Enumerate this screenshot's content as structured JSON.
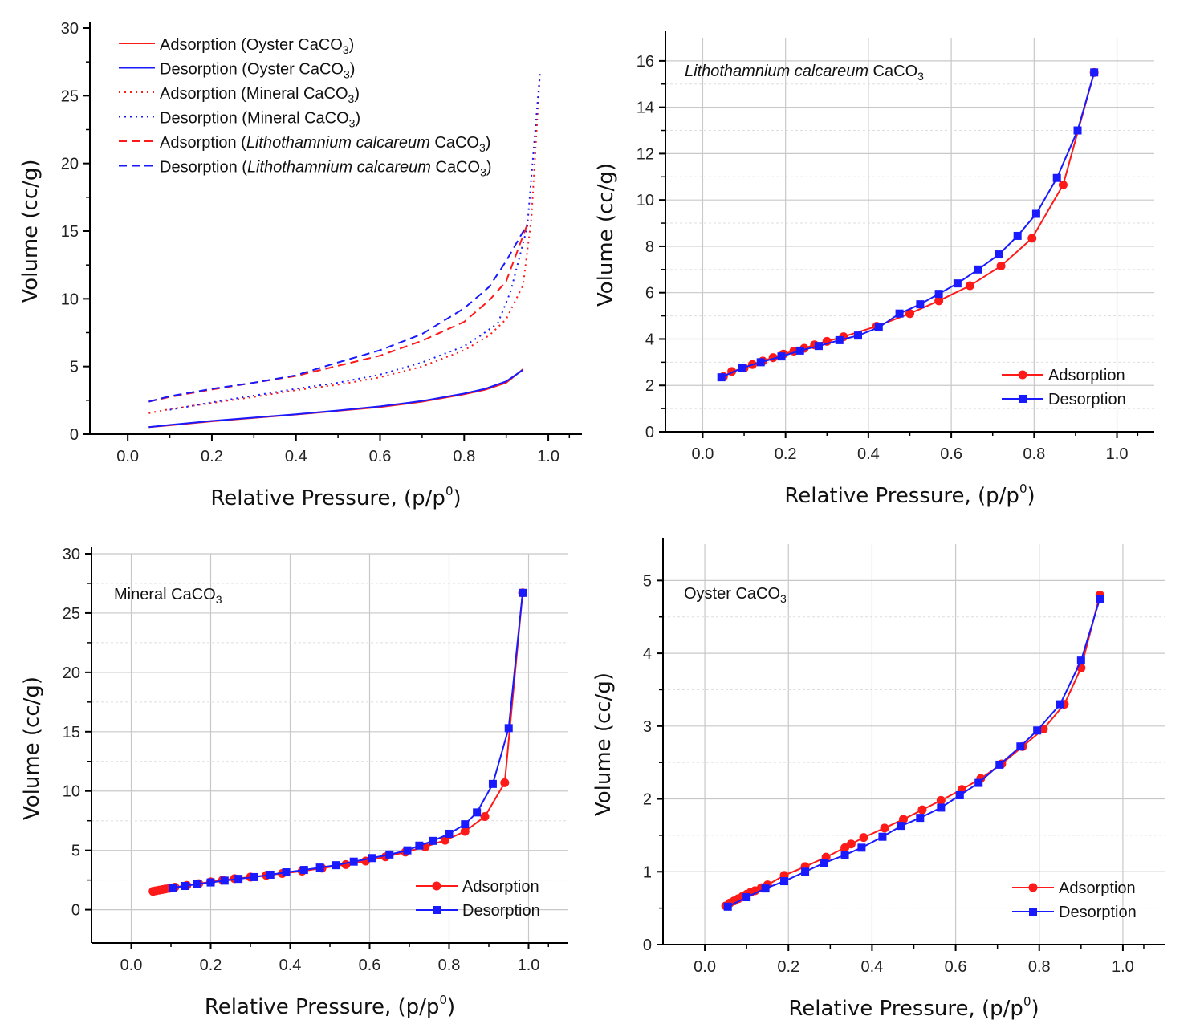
{
  "colors": {
    "adsorption": "#ff1a1a",
    "desorption": "#1a1aff",
    "grid": "#c8c8c8",
    "axis": "#000000"
  },
  "chart_data": [
    {
      "type": "line",
      "id": "overview",
      "title": "",
      "xlabel": "Relative Pressure, (p/p",
      "xlabel_sup": "0",
      "xlabel_end": ")",
      "ylabel": "Volume (cc/g)",
      "xlim": [
        -0.09,
        1.08
      ],
      "ylim": [
        0,
        30
      ],
      "xticks": [
        0.0,
        0.2,
        0.4,
        0.6,
        0.8,
        1.0
      ],
      "xtick_labels": [
        "0.0",
        "0.2",
        "0.4",
        "0.6",
        "0.8",
        "1.0"
      ],
      "yticks": [
        0,
        5,
        10,
        15,
        20,
        25,
        30
      ],
      "ytick_labels": [
        "0",
        "5",
        "10",
        "15",
        "20",
        "25",
        "30"
      ],
      "grid": false,
      "legend_position": "top-left",
      "series": [
        {
          "name": "Adsorption",
          "sample": "Oyster CaCO",
          "sub": "3",
          "style": "solid",
          "color": "adsorption",
          "x": [
            0.05,
            0.1,
            0.2,
            0.3,
            0.4,
            0.5,
            0.6,
            0.7,
            0.8,
            0.85,
            0.9,
            0.94
          ],
          "y": [
            0.52,
            0.65,
            0.95,
            1.2,
            1.45,
            1.73,
            2.0,
            2.4,
            2.95,
            3.28,
            3.8,
            4.8
          ]
        },
        {
          "name": "Desorption",
          "sample": "Oyster CaCO",
          "sub": "3",
          "style": "solid",
          "color": "desorption",
          "x": [
            0.05,
            0.1,
            0.2,
            0.3,
            0.4,
            0.5,
            0.6,
            0.7,
            0.8,
            0.85,
            0.9,
            0.94
          ],
          "y": [
            0.52,
            0.68,
            0.98,
            1.22,
            1.47,
            1.75,
            2.05,
            2.45,
            3.0,
            3.35,
            3.9,
            4.75
          ]
        },
        {
          "name": "Adsorption",
          "sample": "Mineral CaCO",
          "sub": "3",
          "style": "dotted",
          "color": "adsorption",
          "x": [
            0.05,
            0.1,
            0.2,
            0.3,
            0.4,
            0.5,
            0.6,
            0.7,
            0.8,
            0.86,
            0.9,
            0.94,
            0.96,
            0.98
          ],
          "y": [
            1.55,
            1.85,
            2.3,
            2.75,
            3.25,
            3.65,
            4.2,
            5.0,
            6.2,
            7.3,
            8.5,
            11.0,
            16.0,
            26.6
          ]
        },
        {
          "name": "Desorption",
          "sample": "Mineral CaCO",
          "sub": "3",
          "style": "dotted",
          "color": "desorption",
          "x": [
            0.1,
            0.2,
            0.3,
            0.4,
            0.5,
            0.6,
            0.7,
            0.8,
            0.84,
            0.88,
            0.91,
            0.95,
            0.98
          ],
          "y": [
            1.8,
            2.35,
            2.85,
            3.35,
            3.8,
            4.4,
            5.3,
            6.5,
            7.3,
            8.2,
            10.5,
            15.3,
            26.6
          ]
        },
        {
          "name": "Adsorption",
          "sample": "Lithothamnium calcareum",
          "sample_end": " CaCO",
          "sub": "3",
          "style": "dashed",
          "color": "adsorption",
          "x": [
            0.05,
            0.1,
            0.2,
            0.3,
            0.4,
            0.5,
            0.6,
            0.7,
            0.8,
            0.86,
            0.9,
            0.95
          ],
          "y": [
            2.4,
            2.75,
            3.3,
            3.8,
            4.3,
            5.05,
            5.8,
            6.9,
            8.3,
            9.9,
            11.3,
            15.5
          ]
        },
        {
          "name": "Desorption",
          "sample": "Lithothamnium calcareum",
          "sample_end": " CaCO",
          "sub": "3",
          "style": "dashed",
          "color": "desorption",
          "x": [
            0.05,
            0.1,
            0.2,
            0.3,
            0.4,
            0.5,
            0.6,
            0.7,
            0.8,
            0.86,
            0.9,
            0.95
          ],
          "y": [
            2.4,
            2.8,
            3.35,
            3.8,
            4.35,
            5.3,
            6.2,
            7.4,
            9.3,
            10.9,
            12.8,
            15.5
          ]
        }
      ]
    },
    {
      "type": "line",
      "id": "lithothamnium",
      "panel_label": "Lithothamnium calcareum",
      "panel_label_end": " CaCO",
      "panel_label_sub": "3",
      "xlabel": "Relative Pressure, (p/p",
      "xlabel_sup": "0",
      "xlabel_end": ")",
      "ylabel": "Volume (cc/g)",
      "xlim": [
        -0.09,
        1.09
      ],
      "ylim": [
        0,
        17
      ],
      "xticks": [
        0.0,
        0.2,
        0.4,
        0.6,
        0.8,
        1.0
      ],
      "xtick_labels": [
        "0.0",
        "0.2",
        "0.4",
        "0.6",
        "0.8",
        "1.0"
      ],
      "yticks": [
        0,
        2,
        4,
        6,
        8,
        10,
        12,
        14,
        16
      ],
      "ytick_labels": [
        "0",
        "2",
        "4",
        "6",
        "8",
        "10",
        "12",
        "14",
        "16"
      ],
      "grid": true,
      "legend_position": "bottom-right",
      "legend": [
        "Adsorption",
        "Desorption"
      ],
      "series": [
        {
          "name": "Adsorption",
          "color": "adsorption",
          "marker": "circle",
          "x": [
            0.05,
            0.07,
            0.1,
            0.12,
            0.145,
            0.17,
            0.195,
            0.22,
            0.245,
            0.27,
            0.3,
            0.34,
            0.42,
            0.5,
            0.57,
            0.645,
            0.72,
            0.795,
            0.87,
            0.945
          ],
          "y": [
            2.38,
            2.6,
            2.75,
            2.9,
            3.05,
            3.2,
            3.35,
            3.48,
            3.6,
            3.75,
            3.9,
            4.1,
            4.55,
            5.1,
            5.65,
            6.3,
            7.15,
            8.35,
            10.65,
            15.5
          ]
        },
        {
          "name": "Desorption",
          "color": "desorption",
          "marker": "square",
          "x": [
            0.045,
            0.095,
            0.14,
            0.19,
            0.235,
            0.28,
            0.33,
            0.375,
            0.425,
            0.475,
            0.525,
            0.57,
            0.615,
            0.665,
            0.715,
            0.76,
            0.805,
            0.855,
            0.905,
            0.945
          ],
          "y": [
            2.35,
            2.75,
            3.0,
            3.25,
            3.5,
            3.7,
            3.95,
            4.15,
            4.5,
            5.1,
            5.5,
            5.95,
            6.4,
            7.0,
            7.65,
            8.45,
            9.4,
            10.95,
            13.0,
            15.5
          ]
        }
      ]
    },
    {
      "type": "line",
      "id": "mineral",
      "panel_label": "Mineral CaCO",
      "panel_label_sub": "3",
      "xlabel": "Relative Pressure, (p/p",
      "xlabel_sup": "0",
      "xlabel_end": ")",
      "ylabel": "Volume (cc/g)",
      "xlim": [
        -0.1,
        1.1
      ],
      "ylim": [
        -2.8,
        30
      ],
      "xticks": [
        0.0,
        0.2,
        0.4,
        0.6,
        0.8,
        1.0
      ],
      "xtick_labels": [
        "0.0",
        "0.2",
        "0.4",
        "0.6",
        "0.8",
        "1.0"
      ],
      "yticks": [
        0,
        5,
        10,
        15,
        20,
        25,
        30
      ],
      "ytick_labels": [
        "0",
        "5",
        "10",
        "15",
        "20",
        "25",
        "30"
      ],
      "grid": true,
      "legend_position": "bottom-right",
      "legend": [
        "Adsorption",
        "Desorption"
      ],
      "series": [
        {
          "name": "Adsorption",
          "color": "adsorption",
          "marker": "circle",
          "x": [
            0.055,
            0.062,
            0.07,
            0.078,
            0.086,
            0.095,
            0.11,
            0.14,
            0.17,
            0.2,
            0.23,
            0.26,
            0.3,
            0.34,
            0.38,
            0.43,
            0.48,
            0.54,
            0.59,
            0.64,
            0.69,
            0.74,
            0.79,
            0.84,
            0.89,
            0.94,
            0.985
          ],
          "y": [
            1.55,
            1.6,
            1.65,
            1.7,
            1.75,
            1.8,
            1.9,
            2.05,
            2.2,
            2.35,
            2.5,
            2.62,
            2.75,
            2.9,
            3.05,
            3.25,
            3.5,
            3.8,
            4.1,
            4.45,
            4.85,
            5.3,
            5.85,
            6.6,
            7.85,
            10.7,
            26.7
          ]
        },
        {
          "name": "Desorption",
          "color": "desorption",
          "marker": "square",
          "x": [
            0.105,
            0.135,
            0.165,
            0.2,
            0.235,
            0.27,
            0.31,
            0.35,
            0.39,
            0.435,
            0.475,
            0.515,
            0.56,
            0.605,
            0.65,
            0.695,
            0.725,
            0.76,
            0.8,
            0.84,
            0.87,
            0.91,
            0.95,
            0.985
          ],
          "y": [
            1.85,
            2.0,
            2.15,
            2.3,
            2.45,
            2.6,
            2.75,
            2.95,
            3.15,
            3.35,
            3.55,
            3.75,
            4.05,
            4.35,
            4.65,
            5.0,
            5.4,
            5.8,
            6.4,
            7.2,
            8.2,
            10.6,
            15.3,
            26.7
          ]
        }
      ]
    },
    {
      "type": "line",
      "id": "oyster",
      "panel_label": "Oyster CaCO",
      "panel_label_sub": "3",
      "xlabel": "Relative Pressure, (p/p",
      "xlabel_sup": "0",
      "xlabel_end": ")",
      "ylabel": "Volume (cc/g)",
      "xlim": [
        -0.1,
        1.1
      ],
      "ylim": [
        0,
        5.5
      ],
      "xticks": [
        0.0,
        0.2,
        0.4,
        0.6,
        0.8,
        1.0
      ],
      "xtick_labels": [
        "0.0",
        "0.2",
        "0.4",
        "0.6",
        "0.8",
        "1.0"
      ],
      "yticks": [
        0,
        1,
        2,
        3,
        4,
        5
      ],
      "ytick_labels": [
        "0",
        "1",
        "2",
        "3",
        "4",
        "5"
      ],
      "grid": true,
      "legend_position": "bottom-right",
      "legend": [
        "Adsorption",
        "Desorption"
      ],
      "series": [
        {
          "name": "Adsorption",
          "color": "adsorption",
          "marker": "circle",
          "x": [
            0.05,
            0.06,
            0.07,
            0.08,
            0.09,
            0.1,
            0.11,
            0.12,
            0.135,
            0.15,
            0.19,
            0.24,
            0.29,
            0.335,
            0.35,
            0.38,
            0.43,
            0.475,
            0.52,
            0.565,
            0.615,
            0.66,
            0.71,
            0.76,
            0.81,
            0.86,
            0.9,
            0.945
          ],
          "y": [
            0.53,
            0.57,
            0.6,
            0.63,
            0.66,
            0.69,
            0.72,
            0.74,
            0.78,
            0.82,
            0.95,
            1.07,
            1.2,
            1.33,
            1.38,
            1.47,
            1.6,
            1.72,
            1.85,
            1.98,
            2.13,
            2.28,
            2.48,
            2.72,
            2.96,
            3.3,
            3.8,
            4.8
          ]
        },
        {
          "name": "Desorption",
          "color": "desorption",
          "marker": "square",
          "x": [
            0.055,
            0.1,
            0.145,
            0.19,
            0.24,
            0.285,
            0.335,
            0.375,
            0.425,
            0.47,
            0.515,
            0.565,
            0.61,
            0.655,
            0.705,
            0.755,
            0.795,
            0.85,
            0.9,
            0.945
          ],
          "y": [
            0.52,
            0.65,
            0.77,
            0.87,
            1.0,
            1.12,
            1.23,
            1.33,
            1.48,
            1.63,
            1.74,
            1.88,
            2.05,
            2.22,
            2.47,
            2.72,
            2.94,
            3.3,
            3.9,
            4.75
          ]
        }
      ]
    }
  ]
}
